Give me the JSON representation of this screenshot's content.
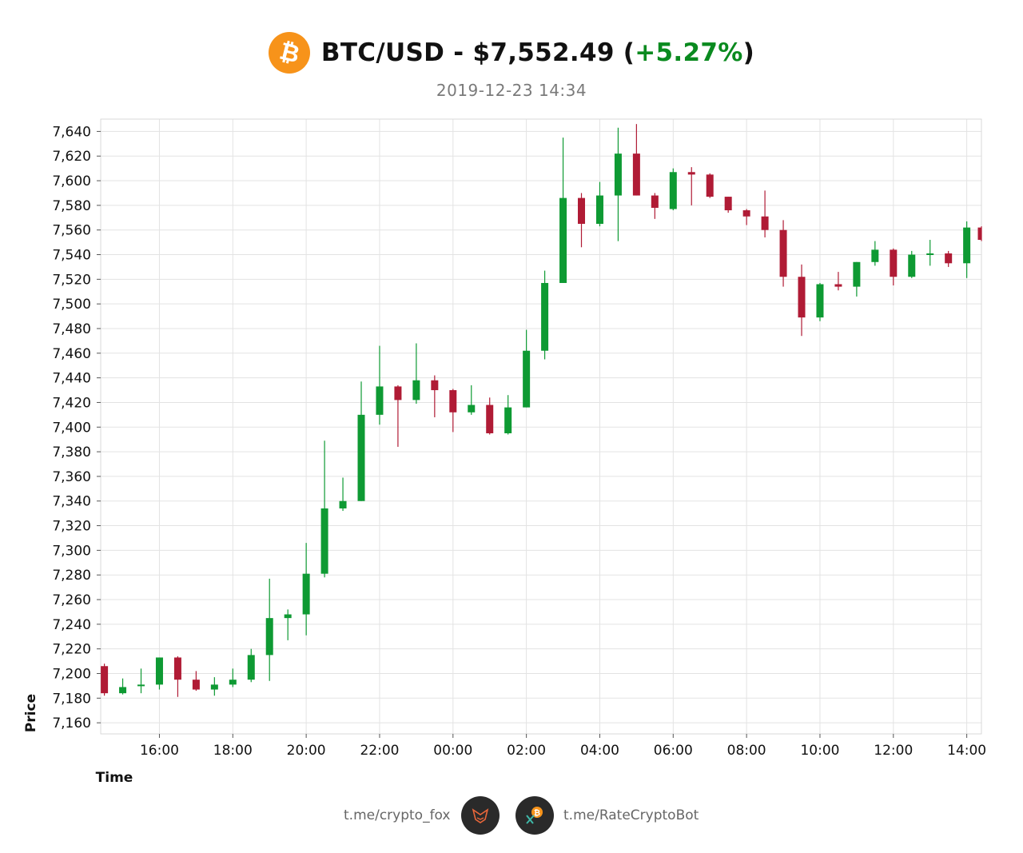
{
  "header": {
    "logo_glyph": "₿",
    "logo_color": "#f7931a",
    "title_prefix": "BTC/USD - $7,552.49 (",
    "change": "+5.27%",
    "title_suffix": ")",
    "change_color": "#0a8a1f",
    "timestamp": "2019-12-23 14:34"
  },
  "footer": {
    "left_link": "t.me/crypto_fox",
    "right_link": "t.me/RateCryptoBot",
    "left_icon": "fox-icon",
    "right_icon": "bitcoin-bot-icon"
  },
  "chart_data": {
    "type": "candlestick",
    "xlabel": "Time",
    "ylabel": "Price",
    "ylim": [
      7151,
      7650
    ],
    "xlim": [
      -3,
      117
    ],
    "yticks": [
      7160,
      7180,
      7200,
      7220,
      7240,
      7260,
      7280,
      7300,
      7320,
      7340,
      7360,
      7380,
      7400,
      7420,
      7440,
      7460,
      7480,
      7500,
      7520,
      7540,
      7560,
      7580,
      7600,
      7620,
      7640
    ],
    "ytick_labels": [
      "7,160",
      "7,180",
      "7,200",
      "7,220",
      "7,240",
      "7,260",
      "7,280",
      "7,300",
      "7,320",
      "7,340",
      "7,360",
      "7,380",
      "7,400",
      "7,420",
      "7,440",
      "7,460",
      "7,480",
      "7,500",
      "7,520",
      "7,540",
      "7,560",
      "7,580",
      "7,600",
      "7,620",
      "7,640"
    ],
    "xticks": [
      5,
      15,
      25,
      35,
      45,
      55,
      65,
      75,
      85,
      95,
      105,
      115
    ],
    "xtick_labels": [
      "16:00",
      "18:00",
      "20:00",
      "22:00",
      "00:00",
      "02:00",
      "04:00",
      "06:00",
      "08:00",
      "10:00",
      "12:00",
      "14:00"
    ],
    "grid": true,
    "up_color": "#0e9a33",
    "down_color": "#b01b35",
    "candles": [
      {
        "x": -2.5,
        "open": 7206,
        "high": 7208,
        "low": 7182,
        "close": 7184
      },
      {
        "x": 0,
        "open": 7184,
        "high": 7196,
        "low": 7183,
        "close": 7189
      },
      {
        "x": 2.5,
        "open": 7190,
        "high": 7204,
        "low": 7184,
        "close": 7191
      },
      {
        "x": 5,
        "open": 7191,
        "high": 7213,
        "low": 7187,
        "close": 7213
      },
      {
        "x": 7.5,
        "open": 7213,
        "high": 7214,
        "low": 7181,
        "close": 7195
      },
      {
        "x": 10,
        "open": 7195,
        "high": 7202,
        "low": 7186,
        "close": 7187
      },
      {
        "x": 12.5,
        "open": 7187,
        "high": 7197,
        "low": 7182,
        "close": 7191
      },
      {
        "x": 15,
        "open": 7191,
        "high": 7204,
        "low": 7189,
        "close": 7195
      },
      {
        "x": 17.5,
        "open": 7195,
        "high": 7220,
        "low": 7193,
        "close": 7215
      },
      {
        "x": 20,
        "open": 7215,
        "high": 7277,
        "low": 7194,
        "close": 7245
      },
      {
        "x": 22.5,
        "open": 7245,
        "high": 7252,
        "low": 7227,
        "close": 7248
      },
      {
        "x": 25,
        "open": 7248,
        "high": 7306,
        "low": 7231,
        "close": 7281
      },
      {
        "x": 27.5,
        "open": 7281,
        "high": 7389,
        "low": 7278,
        "close": 7334
      },
      {
        "x": 30,
        "open": 7334,
        "high": 7359,
        "low": 7332,
        "close": 7340
      },
      {
        "x": 32.5,
        "open": 7340,
        "high": 7437,
        "low": 7340,
        "close": 7410
      },
      {
        "x": 35,
        "open": 7410,
        "high": 7466,
        "low": 7402,
        "close": 7433
      },
      {
        "x": 37.5,
        "open": 7433,
        "high": 7434,
        "low": 7384,
        "close": 7422
      },
      {
        "x": 40,
        "open": 7422,
        "high": 7468,
        "low": 7419,
        "close": 7438
      },
      {
        "x": 42.5,
        "open": 7438,
        "high": 7442,
        "low": 7408,
        "close": 7430
      },
      {
        "x": 45,
        "open": 7430,
        "high": 7431,
        "low": 7396,
        "close": 7412
      },
      {
        "x": 47.5,
        "open": 7412,
        "high": 7434,
        "low": 7410,
        "close": 7418
      },
      {
        "x": 50,
        "open": 7418,
        "high": 7424,
        "low": 7394,
        "close": 7395
      },
      {
        "x": 52.5,
        "open": 7395,
        "high": 7426,
        "low": 7394,
        "close": 7416
      },
      {
        "x": 55,
        "open": 7416,
        "high": 7479,
        "low": 7416,
        "close": 7462
      },
      {
        "x": 57.5,
        "open": 7462,
        "high": 7527,
        "low": 7455,
        "close": 7517
      },
      {
        "x": 60,
        "open": 7517,
        "high": 7635,
        "low": 7517,
        "close": 7586
      },
      {
        "x": 62.5,
        "open": 7586,
        "high": 7590,
        "low": 7546,
        "close": 7565
      },
      {
        "x": 65,
        "open": 7565,
        "high": 7599,
        "low": 7563,
        "close": 7588
      },
      {
        "x": 67.5,
        "open": 7588,
        "high": 7643,
        "low": 7551,
        "close": 7622
      },
      {
        "x": 70,
        "open": 7622,
        "high": 7646,
        "low": 7588,
        "close": 7588
      },
      {
        "x": 72.5,
        "open": 7588,
        "high": 7590,
        "low": 7569,
        "close": 7578
      },
      {
        "x": 75,
        "open": 7577,
        "high": 7610,
        "low": 7576,
        "close": 7607
      },
      {
        "x": 77.5,
        "open": 7607,
        "high": 7611,
        "low": 7580,
        "close": 7605
      },
      {
        "x": 80,
        "open": 7605,
        "high": 7606,
        "low": 7586,
        "close": 7587
      },
      {
        "x": 82.5,
        "open": 7587,
        "high": 7587,
        "low": 7574,
        "close": 7576
      },
      {
        "x": 85,
        "open": 7576,
        "high": 7577,
        "low": 7564,
        "close": 7571
      },
      {
        "x": 87.5,
        "open": 7571,
        "high": 7592,
        "low": 7554,
        "close": 7560
      },
      {
        "x": 90,
        "open": 7560,
        "high": 7568,
        "low": 7514,
        "close": 7522
      },
      {
        "x": 92.5,
        "open": 7522,
        "high": 7532,
        "low": 7474,
        "close": 7489
      },
      {
        "x": 95,
        "open": 7489,
        "high": 7517,
        "low": 7486,
        "close": 7516
      },
      {
        "x": 97.5,
        "open": 7516,
        "high": 7526,
        "low": 7511,
        "close": 7514
      },
      {
        "x": 100,
        "open": 7514,
        "high": 7534,
        "low": 7506,
        "close": 7534
      },
      {
        "x": 102.5,
        "open": 7534,
        "high": 7551,
        "low": 7531,
        "close": 7544
      },
      {
        "x": 105,
        "open": 7544,
        "high": 7545,
        "low": 7515,
        "close": 7522
      },
      {
        "x": 107.5,
        "open": 7522,
        "high": 7543,
        "low": 7521,
        "close": 7540
      },
      {
        "x": 110,
        "open": 7540,
        "high": 7552,
        "low": 7531,
        "close": 7541
      },
      {
        "x": 112.5,
        "open": 7541,
        "high": 7543,
        "low": 7530,
        "close": 7533
      },
      {
        "x": 115,
        "open": 7533,
        "high": 7567,
        "low": 7521,
        "close": 7562
      },
      {
        "x": 117,
        "open": 7562,
        "high": 7563,
        "low": 7551,
        "close": 7552
      }
    ]
  }
}
